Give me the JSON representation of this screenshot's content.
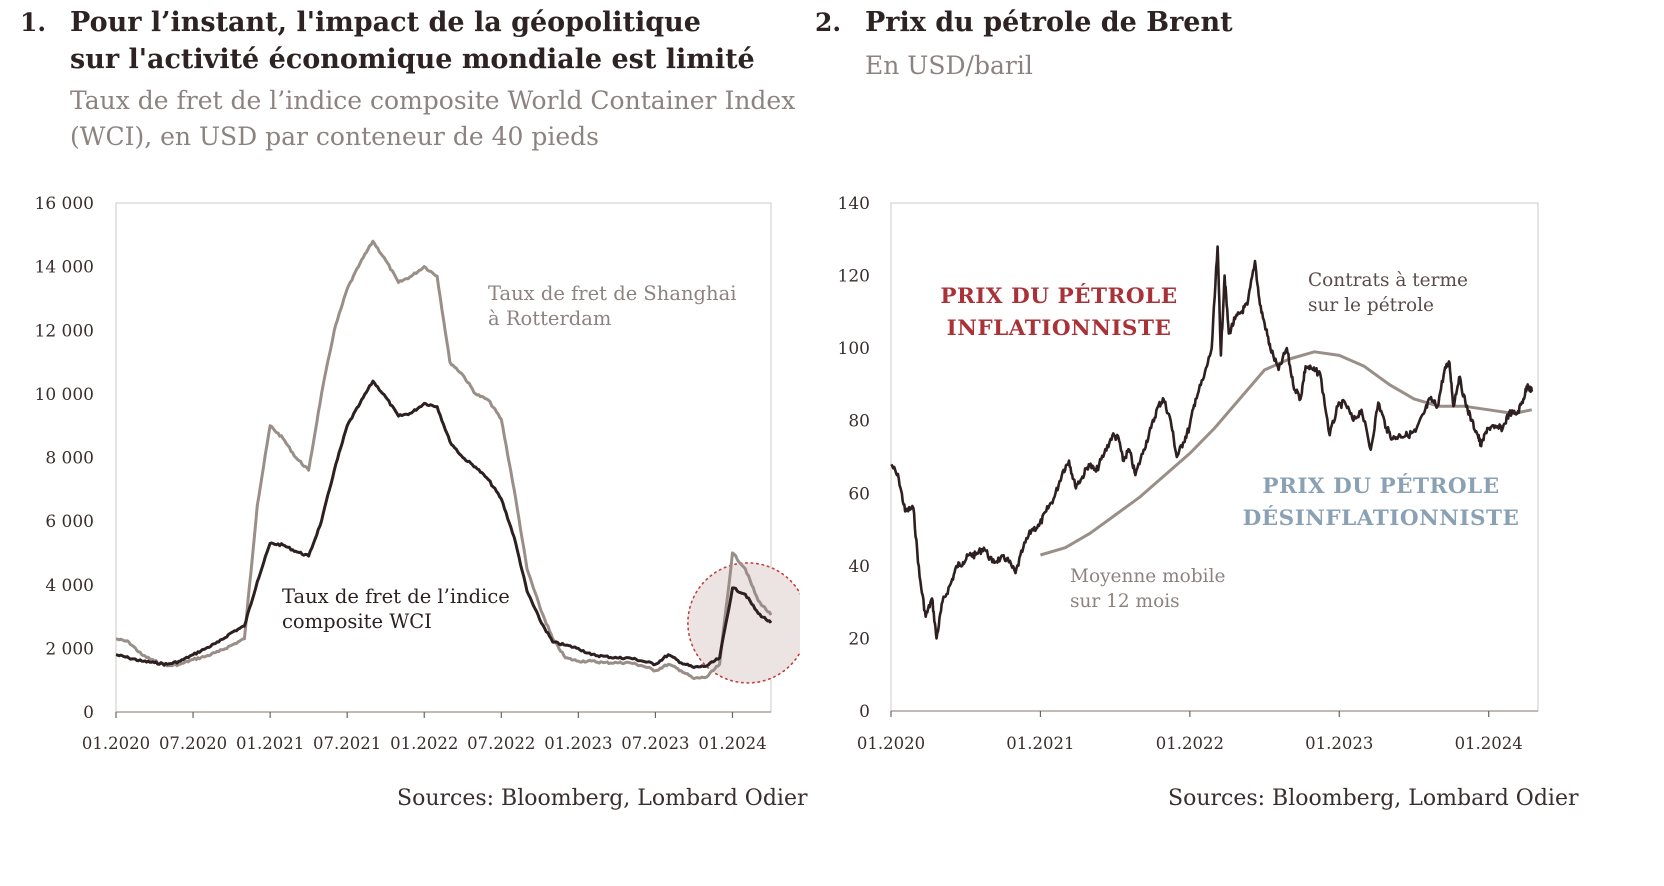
{
  "panel1": {
    "number": "1.",
    "title_line1": "Pour l’instant, l'impact de la géopolitique",
    "title_line2": "sur l'activité économique mondiale est limité",
    "subtitle_line1": "Taux de fret de l’indice composite World Container Index",
    "subtitle_line2": "(WCI), en USD par conteneur de 40 pieds",
    "source": "Sources: Bloomberg, Lombard Odier"
  },
  "panel2": {
    "number": "2.",
    "title": "Prix du pétrole de Brent",
    "subtitle": "En USD/baril",
    "source": "Sources: Bloomberg, Lombard Odier"
  },
  "chart_data": [
    {
      "type": "line",
      "ylim": [
        0,
        16000
      ],
      "xlim": [
        "2020-01",
        "2024-04"
      ],
      "y_ticks": [
        0,
        2000,
        4000,
        6000,
        8000,
        10000,
        12000,
        14000,
        16000
      ],
      "y_tick_labels": [
        "0",
        "2 000",
        "4 000",
        "6 000",
        "8 000",
        "10 000",
        "12 000",
        "14 000",
        "16 000"
      ],
      "x_tick_labels": [
        "01.2020",
        "07.2020",
        "01.2021",
        "07.2021",
        "01.2022",
        "07.2022",
        "01.2023",
        "07.2023",
        "01.2024"
      ],
      "grid": false,
      "colors": {
        "wci": "#2e2020",
        "shanghai": "#9a8e89",
        "highlight_fill": "#ece4e2",
        "highlight_stroke": "#c0413f"
      },
      "annotations": [
        {
          "id": "shanghai",
          "lines": [
            "Taux de fret de Shanghai",
            "à Rotterdam"
          ]
        },
        {
          "id": "wci",
          "lines": [
            "Taux de fret de l’indice",
            "composite WCI"
          ]
        }
      ],
      "series": [
        {
          "id": "shanghai",
          "points": [
            [
              "2020-01",
              2300
            ],
            [
              "2020-02",
              2200
            ],
            [
              "2020-03",
              1800
            ],
            [
              "2020-04",
              1600
            ],
            [
              "2020-05",
              1450
            ],
            [
              "2020-06",
              1500
            ],
            [
              "2020-07",
              1650
            ],
            [
              "2020-08",
              1750
            ],
            [
              "2020-09",
              1900
            ],
            [
              "2020-10",
              2100
            ],
            [
              "2020-11",
              2300
            ],
            [
              "2020-12",
              6500
            ],
            [
              "2021-01",
              9000
            ],
            [
              "2021-02",
              8600
            ],
            [
              "2021-03",
              8000
            ],
            [
              "2021-04",
              7600
            ],
            [
              "2021-05",
              10000
            ],
            [
              "2021-06",
              12000
            ],
            [
              "2021-07",
              13300
            ],
            [
              "2021-08",
              14100
            ],
            [
              "2021-09",
              14800
            ],
            [
              "2021-10",
              14200
            ],
            [
              "2021-11",
              13500
            ],
            [
              "2021-12",
              13700
            ],
            [
              "2022-01",
              14000
            ],
            [
              "2022-02",
              13700
            ],
            [
              "2022-03",
              11000
            ],
            [
              "2022-04",
              10600
            ],
            [
              "2022-05",
              10000
            ],
            [
              "2022-06",
              9800
            ],
            [
              "2022-07",
              9200
            ],
            [
              "2022-08",
              7000
            ],
            [
              "2022-09",
              4500
            ],
            [
              "2022-10",
              3300
            ],
            [
              "2022-11",
              2300
            ],
            [
              "2022-12",
              1700
            ],
            [
              "2023-01",
              1600
            ],
            [
              "2023-02",
              1600
            ],
            [
              "2023-03",
              1550
            ],
            [
              "2023-04",
              1550
            ],
            [
              "2023-05",
              1550
            ],
            [
              "2023-06",
              1450
            ],
            [
              "2023-07",
              1300
            ],
            [
              "2023-08",
              1500
            ],
            [
              "2023-09",
              1300
            ],
            [
              "2023-10",
              1050
            ],
            [
              "2023-11",
              1100
            ],
            [
              "2023-12",
              1500
            ],
            [
              "2024-01",
              5000
            ],
            [
              "2024-02",
              4500
            ],
            [
              "2024-03",
              3500
            ],
            [
              "2024-04",
              3050
            ]
          ]
        },
        {
          "id": "wci",
          "points": [
            [
              "2020-01",
              1800
            ],
            [
              "2020-02",
              1700
            ],
            [
              "2020-03",
              1600
            ],
            [
              "2020-04",
              1550
            ],
            [
              "2020-05",
              1500
            ],
            [
              "2020-06",
              1600
            ],
            [
              "2020-07",
              1800
            ],
            [
              "2020-08",
              2000
            ],
            [
              "2020-09",
              2200
            ],
            [
              "2020-10",
              2500
            ],
            [
              "2020-11",
              2700
            ],
            [
              "2020-12",
              4100
            ],
            [
              "2021-01",
              5300
            ],
            [
              "2021-02",
              5250
            ],
            [
              "2021-03",
              5050
            ],
            [
              "2021-04",
              4900
            ],
            [
              "2021-05",
              6000
            ],
            [
              "2021-06",
              7600
            ],
            [
              "2021-07",
              9000
            ],
            [
              "2021-08",
              9700
            ],
            [
              "2021-09",
              10400
            ],
            [
              "2021-10",
              9900
            ],
            [
              "2021-11",
              9300
            ],
            [
              "2021-12",
              9400
            ],
            [
              "2022-01",
              9700
            ],
            [
              "2022-02",
              9600
            ],
            [
              "2022-03",
              8500
            ],
            [
              "2022-04",
              8000
            ],
            [
              "2022-05",
              7700
            ],
            [
              "2022-06",
              7300
            ],
            [
              "2022-07",
              6700
            ],
            [
              "2022-08",
              5500
            ],
            [
              "2022-09",
              3800
            ],
            [
              "2022-10",
              2900
            ],
            [
              "2022-11",
              2200
            ],
            [
              "2022-12",
              2100
            ],
            [
              "2023-01",
              2000
            ],
            [
              "2023-02",
              1800
            ],
            [
              "2023-03",
              1750
            ],
            [
              "2023-04",
              1700
            ],
            [
              "2023-05",
              1700
            ],
            [
              "2023-06",
              1600
            ],
            [
              "2023-07",
              1500
            ],
            [
              "2023-08",
              1800
            ],
            [
              "2023-09",
              1550
            ],
            [
              "2023-10",
              1400
            ],
            [
              "2023-11",
              1450
            ],
            [
              "2023-12",
              1700
            ],
            [
              "2024-01",
              3900
            ],
            [
              "2024-02",
              3700
            ],
            [
              "2024-03",
              3100
            ],
            [
              "2024-04",
              2800
            ]
          ]
        }
      ]
    },
    {
      "type": "line",
      "ylim": [
        0,
        140
      ],
      "xlim": [
        "2020-01",
        "2024-04"
      ],
      "y_ticks": [
        0,
        20,
        40,
        60,
        80,
        100,
        120,
        140
      ],
      "y_tick_labels": [
        "0",
        "20",
        "40",
        "60",
        "80",
        "100",
        "120",
        "140"
      ],
      "x_tick_labels": [
        "01.2020",
        "01.2021",
        "01.2022",
        "01.2023",
        "01.2024"
      ],
      "grid": false,
      "colors": {
        "futures": "#2e2020",
        "moving_average": "#9a8e89",
        "inflationary": "#a83237",
        "disinflationary": "#8aa0b4",
        "annotation": "#5a4c4a"
      },
      "annotations": [
        {
          "id": "inflationary",
          "lines": [
            "PRIX DU PÉTROLE",
            "INFLATIONNISTE"
          ]
        },
        {
          "id": "disinflationary",
          "lines": [
            "PRIX DU PÉTROLE",
            "DÉSINFLATIONNISTE"
          ]
        },
        {
          "id": "futures",
          "lines": [
            "Contrats à terme",
            "sur le pétrole"
          ]
        },
        {
          "id": "moving_average",
          "lines": [
            "Moyenne mobile",
            "sur 12 mois"
          ]
        }
      ],
      "series": [
        {
          "id": "futures",
          "points": [
            [
              "2020-01-02",
              68
            ],
            [
              "2020-01-20",
              64
            ],
            [
              "2020-02-05",
              55
            ],
            [
              "2020-02-25",
              56
            ],
            [
              "2020-03-10",
              37
            ],
            [
              "2020-03-25",
              26
            ],
            [
              "2020-04-10",
              31
            ],
            [
              "2020-04-21",
              20
            ],
            [
              "2020-05-05",
              30
            ],
            [
              "2020-05-25",
              35
            ],
            [
              "2020-06-10",
              40
            ],
            [
              "2020-06-25",
              41
            ],
            [
              "2020-07-10",
              43
            ],
            [
              "2020-07-25",
              43
            ],
            [
              "2020-08-15",
              45
            ],
            [
              "2020-09-05",
              41
            ],
            [
              "2020-09-25",
              42
            ],
            [
              "2020-10-10",
              42
            ],
            [
              "2020-11-01",
              38
            ],
            [
              "2020-11-20",
              45
            ],
            [
              "2020-12-10",
              50
            ],
            [
              "2020-12-28",
              51
            ],
            [
              "2021-01-15",
              55
            ],
            [
              "2021-02-05",
              59
            ],
            [
              "2021-02-25",
              66
            ],
            [
              "2021-03-10",
              69
            ],
            [
              "2021-03-25",
              62
            ],
            [
              "2021-04-10",
              64
            ],
            [
              "2021-04-28",
              68
            ],
            [
              "2021-05-15",
              66
            ],
            [
              "2021-06-05",
              71
            ],
            [
              "2021-06-25",
              76
            ],
            [
              "2021-07-10",
              75
            ],
            [
              "2021-07-20",
              69
            ],
            [
              "2021-08-05",
              72
            ],
            [
              "2021-08-20",
              65
            ],
            [
              "2021-09-10",
              72
            ],
            [
              "2021-09-28",
              78
            ],
            [
              "2021-10-15",
              84
            ],
            [
              "2021-10-28",
              86
            ],
            [
              "2021-11-15",
              80
            ],
            [
              "2021-11-30",
              70
            ],
            [
              "2021-12-15",
              74
            ],
            [
              "2021-12-30",
              78
            ],
            [
              "2022-01-15",
              86
            ],
            [
              "2022-02-05",
              92
            ],
            [
              "2022-02-24",
              100
            ],
            [
              "2022-03-08",
              128
            ],
            [
              "2022-03-16",
              98
            ],
            [
              "2022-03-25",
              120
            ],
            [
              "2022-04-05",
              104
            ],
            [
              "2022-04-20",
              108
            ],
            [
              "2022-05-05",
              110
            ],
            [
              "2022-05-20",
              112
            ],
            [
              "2022-06-08",
              124
            ],
            [
              "2022-06-20",
              112
            ],
            [
              "2022-07-05",
              105
            ],
            [
              "2022-07-15",
              100
            ],
            [
              "2022-08-05",
              94
            ],
            [
              "2022-08-25",
              100
            ],
            [
              "2022-09-10",
              90
            ],
            [
              "2022-09-28",
              86
            ],
            [
              "2022-10-10",
              95
            ],
            [
              "2022-10-28",
              94
            ],
            [
              "2022-11-15",
              93
            ],
            [
              "2022-12-08",
              76
            ],
            [
              "2022-12-28",
              84
            ],
            [
              "2023-01-15",
              85
            ],
            [
              "2023-02-05",
              80
            ],
            [
              "2023-02-25",
              83
            ],
            [
              "2023-03-17",
              72
            ],
            [
              "2023-04-05",
              85
            ],
            [
              "2023-04-25",
              78
            ],
            [
              "2023-05-10",
              75
            ],
            [
              "2023-05-28",
              76
            ],
            [
              "2023-06-15",
              76
            ],
            [
              "2023-07-05",
              77
            ],
            [
              "2023-07-25",
              82
            ],
            [
              "2023-08-10",
              86
            ],
            [
              "2023-08-28",
              84
            ],
            [
              "2023-09-15",
              94
            ],
            [
              "2023-09-27",
              96
            ],
            [
              "2023-10-06",
              84
            ],
            [
              "2023-10-20",
              92
            ],
            [
              "2023-11-05",
              85
            ],
            [
              "2023-11-20",
              80
            ],
            [
              "2023-12-05",
              76
            ],
            [
              "2023-12-13",
              73
            ],
            [
              "2023-12-28",
              78
            ],
            [
              "2024-01-15",
              78
            ],
            [
              "2024-02-05",
              78
            ],
            [
              "2024-02-20",
              82
            ],
            [
              "2024-03-10",
              82
            ],
            [
              "2024-03-25",
              86
            ],
            [
              "2024-04-05",
              90
            ],
            [
              "2024-04-15",
              88
            ]
          ]
        },
        {
          "id": "moving_average",
          "points": [
            [
              "2021-01-01",
              43
            ],
            [
              "2021-03-01",
              45
            ],
            [
              "2021-05-01",
              49
            ],
            [
              "2021-07-01",
              54
            ],
            [
              "2021-09-01",
              59
            ],
            [
              "2021-11-01",
              65
            ],
            [
              "2022-01-01",
              71
            ],
            [
              "2022-03-01",
              78
            ],
            [
              "2022-05-01",
              86
            ],
            [
              "2022-07-01",
              94
            ],
            [
              "2022-09-01",
              97
            ],
            [
              "2022-11-01",
              99
            ],
            [
              "2023-01-01",
              98
            ],
            [
              "2023-03-01",
              95
            ],
            [
              "2023-05-01",
              90
            ],
            [
              "2023-07-01",
              86
            ],
            [
              "2023-09-01",
              84
            ],
            [
              "2023-11-01",
              84
            ],
            [
              "2024-01-01",
              83
            ],
            [
              "2024-03-01",
              82
            ],
            [
              "2024-04-15",
              83
            ]
          ]
        }
      ]
    }
  ]
}
